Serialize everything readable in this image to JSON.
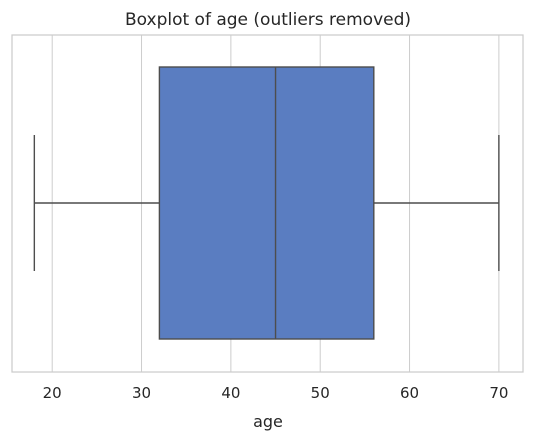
{
  "chart_data": {
    "type": "boxplot",
    "title": "Boxplot of age (outliers removed)",
    "xlabel": "age",
    "ylabel": "",
    "orientation": "horizontal",
    "xlim": [
      15.5,
      72.7
    ],
    "ticks": [
      20,
      30,
      40,
      50,
      60,
      70
    ],
    "tick_labels": [
      "20",
      "30",
      "40",
      "50",
      "60",
      "70"
    ],
    "grid": true,
    "box": {
      "whisker_low": 18,
      "q1": 32,
      "median": 45,
      "q3": 56,
      "whisker_high": 70,
      "color": "#5a7dc1"
    }
  }
}
